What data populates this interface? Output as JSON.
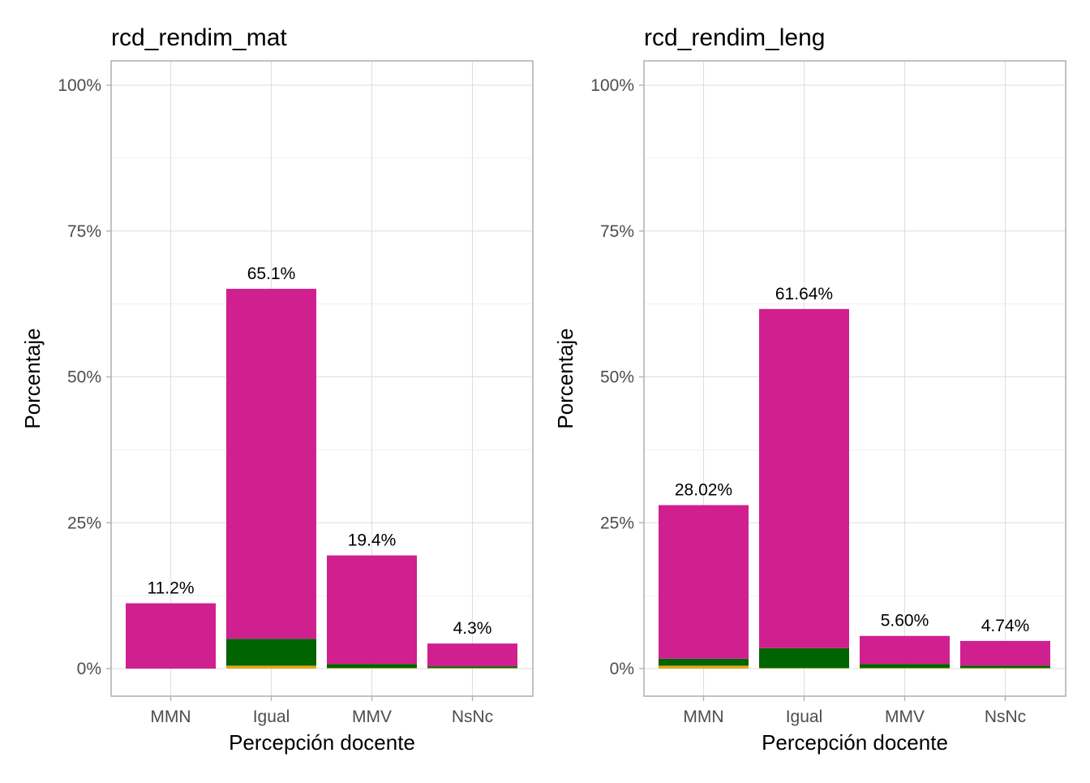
{
  "chart_data": [
    {
      "type": "bar",
      "stacked": true,
      "title": "rcd_rendim_mat",
      "xlabel": "Percepción docente",
      "ylabel": "Porcentaje",
      "categories": [
        "MMN",
        "Igual",
        "MMV",
        "NsNc"
      ],
      "y_ticks": [
        "0%",
        "25%",
        "50%",
        "75%",
        "100%"
      ],
      "ylim": [
        0,
        100
      ],
      "grid": true,
      "totals": [
        11.2,
        65.1,
        19.4,
        4.3
      ],
      "total_labels": [
        "11.2%",
        "65.1%",
        "19.4%",
        "4.3%"
      ],
      "series": [
        {
          "color": "#e6a817",
          "values": [
            0.0,
            0.5,
            0.1,
            0.1
          ]
        },
        {
          "color": "#006400",
          "values": [
            0.0,
            4.6,
            0.7,
            0.3
          ]
        },
        {
          "color": "#d0208f",
          "values": [
            11.2,
            60.0,
            18.6,
            3.9
          ]
        }
      ]
    },
    {
      "type": "bar",
      "stacked": true,
      "title": "rcd_rendim_leng",
      "xlabel": "Percepción docente",
      "ylabel": "Porcentaje",
      "categories": [
        "MMN",
        "Igual",
        "MMV",
        "NsNc"
      ],
      "y_ticks": [
        "0%",
        "25%",
        "50%",
        "75%",
        "100%"
      ],
      "ylim": [
        0,
        100
      ],
      "grid": true,
      "totals": [
        28.02,
        61.64,
        5.6,
        4.74
      ],
      "total_labels": [
        "28.02%",
        "61.64%",
        "5.60%",
        "4.74%"
      ],
      "series": [
        {
          "color": "#e6a817",
          "values": [
            0.5,
            0.1,
            0.1,
            0.1
          ]
        },
        {
          "color": "#006400",
          "values": [
            1.2,
            3.4,
            0.7,
            0.4
          ]
        },
        {
          "color": "#d0208f",
          "values": [
            26.32,
            58.14,
            4.8,
            4.24
          ]
        }
      ]
    }
  ]
}
